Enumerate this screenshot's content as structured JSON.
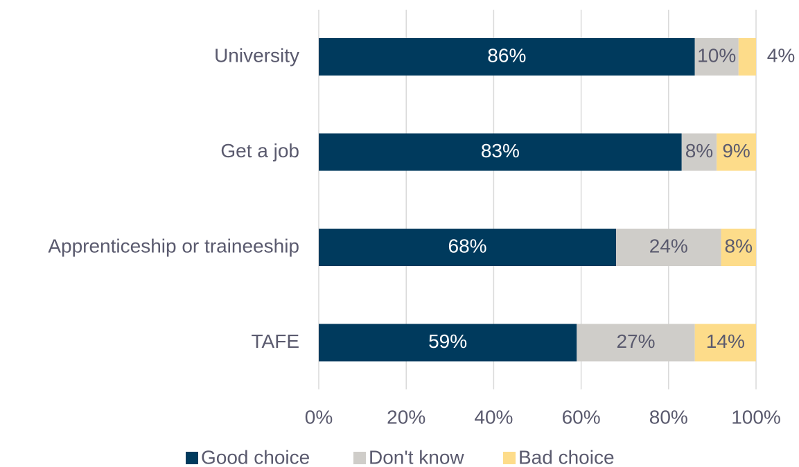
{
  "chart_data": {
    "type": "stacked_barh",
    "categories": [
      "University",
      "Get a job",
      "Apprenticeship or traineeship",
      "TAFE"
    ],
    "series": [
      {
        "name": "Good choice",
        "color": "#003a5d",
        "label_color": "#ffffff",
        "values": [
          86,
          83,
          68,
          59
        ],
        "value_labels": [
          "86%",
          "83%",
          "68%",
          "59%"
        ]
      },
      {
        "name": "Don't know",
        "color": "#cfcdc9",
        "label_color": "#5a5a6e",
        "values": [
          10,
          8,
          24,
          27
        ],
        "value_labels": [
          "10%",
          "8%",
          "24%",
          "27%"
        ]
      },
      {
        "name": "Bad choice",
        "color": "#fddc8a",
        "label_color": "#5a5a6e",
        "values": [
          4,
          9,
          8,
          14
        ],
        "value_labels": [
          "4%",
          "9%",
          "8%",
          "14%"
        ]
      }
    ],
    "xlim": [
      0,
      100
    ],
    "xticks": [
      {
        "value": 0,
        "label": "0%"
      },
      {
        "value": 20,
        "label": "20%"
      },
      {
        "value": 40,
        "label": "40%"
      },
      {
        "value": 60,
        "label": "60%"
      },
      {
        "value": 80,
        "label": "80%"
      },
      {
        "value": 100,
        "label": "100%"
      }
    ],
    "grid": true,
    "legend": "bottom"
  }
}
